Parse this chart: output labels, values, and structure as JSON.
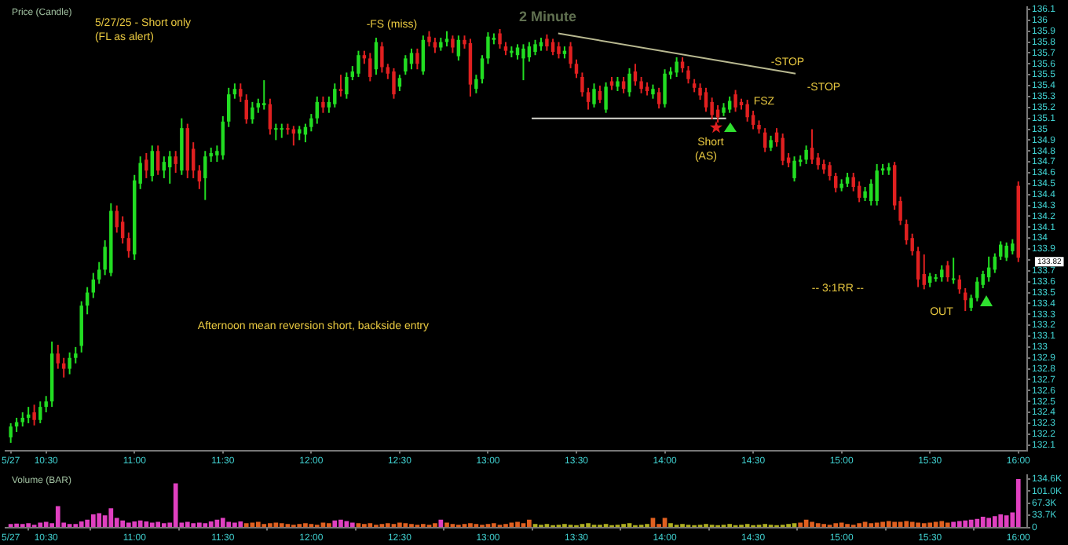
{
  "chart_data": [
    {
      "type": "candlestick",
      "title": "2 Minute",
      "x": [
        10.3,
        10.333,
        10.367,
        10.4,
        10.433,
        10.467,
        10.5,
        10.533,
        10.567,
        10.6,
        10.633,
        10.667,
        10.7,
        10.733,
        10.767,
        10.8,
        10.833,
        10.867,
        10.9,
        10.933,
        10.967,
        11,
        11.033,
        11.067,
        11.1,
        11.133,
        11.167,
        11.2,
        11.233,
        11.267,
        11.3,
        11.333,
        11.367,
        11.4,
        11.433,
        11.467,
        11.5,
        11.533,
        11.567,
        11.6,
        11.633,
        11.667,
        11.7,
        11.733,
        11.767,
        11.8,
        11.833,
        11.867,
        11.9,
        11.933,
        11.967,
        12,
        12.033,
        12.067,
        12.1,
        12.133,
        12.167,
        12.2,
        12.233,
        12.267,
        12.3,
        12.333,
        12.367,
        12.4,
        12.433,
        12.467,
        12.5,
        12.533,
        12.567,
        12.6,
        12.633,
        12.667,
        12.7,
        12.733,
        12.767,
        12.8,
        12.833,
        12.867,
        12.9,
        12.933,
        12.967,
        13,
        13.033,
        13.067,
        13.1,
        13.133,
        13.167,
        13.2,
        13.233,
        13.267,
        13.3,
        13.333,
        13.367,
        13.4,
        13.433,
        13.467,
        13.5,
        13.533,
        13.567,
        13.6,
        13.633,
        13.667,
        13.7,
        13.733,
        13.767,
        13.8,
        13.833,
        13.867,
        13.9,
        13.933,
        13.967,
        14,
        14.033,
        14.067,
        14.1,
        14.133,
        14.167,
        14.2,
        14.233,
        14.267,
        14.3,
        14.333,
        14.367,
        14.4,
        14.433,
        14.467,
        14.5,
        14.533,
        14.567,
        14.6,
        14.633,
        14.667,
        14.7,
        14.733,
        14.767,
        14.8,
        14.833,
        14.867,
        14.9,
        14.933,
        14.967,
        15,
        15.033,
        15.067,
        15.1,
        15.133,
        15.167,
        15.2,
        15.233,
        15.267,
        15.3,
        15.333,
        15.367,
        15.4,
        15.433,
        15.467,
        15.5,
        15.533,
        15.567,
        15.6,
        15.633,
        15.667,
        15.7,
        15.733,
        15.767,
        15.8,
        15.833,
        15.867,
        15.9,
        15.933,
        15.967,
        16
      ],
      "ohlc": [
        [
          132.17,
          132.3,
          132.12,
          132.27
        ],
        [
          132.27,
          132.35,
          132.22,
          132.31
        ],
        [
          132.31,
          132.4,
          132.27,
          132.35
        ],
        [
          132.35,
          132.45,
          132.3,
          132.38
        ],
        [
          132.4,
          132.47,
          132.28,
          132.33
        ],
        [
          132.33,
          132.5,
          132.3,
          132.45
        ],
        [
          132.45,
          132.55,
          132.4,
          132.5
        ],
        [
          132.5,
          133.05,
          132.45,
          132.94
        ],
        [
          132.94,
          133.02,
          132.8,
          132.85
        ],
        [
          132.85,
          132.9,
          132.72,
          132.8
        ],
        [
          132.8,
          132.95,
          132.75,
          132.9
        ],
        [
          132.9,
          133.0,
          132.85,
          132.94
        ],
        [
          133.01,
          133.42,
          132.95,
          133.38
        ],
        [
          133.38,
          133.55,
          133.3,
          133.5
        ],
        [
          133.5,
          133.68,
          133.45,
          133.62
        ],
        [
          133.62,
          133.78,
          133.58,
          133.71
        ],
        [
          133.71,
          133.98,
          133.66,
          133.92
        ],
        [
          133.68,
          134.32,
          133.65,
          134.25
        ],
        [
          134.25,
          134.3,
          134.05,
          134.1
        ],
        [
          134.15,
          134.2,
          133.95,
          134.0
        ],
        [
          134.0,
          134.05,
          133.82,
          133.88
        ],
        [
          133.85,
          134.58,
          133.8,
          134.53
        ],
        [
          134.5,
          134.75,
          134.45,
          134.69
        ],
        [
          134.72,
          134.78,
          134.55,
          134.62
        ],
        [
          134.57,
          134.85,
          134.52,
          134.8
        ],
        [
          134.8,
          134.85,
          134.58,
          134.62
        ],
        [
          134.62,
          134.75,
          134.55,
          134.7
        ],
        [
          134.65,
          134.8,
          134.5,
          134.75
        ],
        [
          134.75,
          134.8,
          134.6,
          134.68
        ],
        [
          134.62,
          135.1,
          134.58,
          135.01
        ],
        [
          135.01,
          135.05,
          134.55,
          134.62
        ],
        [
          134.82,
          134.88,
          134.55,
          134.62
        ],
        [
          134.62,
          134.67,
          134.45,
          134.52
        ],
        [
          134.55,
          134.8,
          134.35,
          134.75
        ],
        [
          134.75,
          134.83,
          134.7,
          134.78
        ],
        [
          134.76,
          134.85,
          134.7,
          134.8
        ],
        [
          134.76,
          135.12,
          134.72,
          135.07
        ],
        [
          135.07,
          135.38,
          135.02,
          135.32
        ],
        [
          135.32,
          135.42,
          135.28,
          135.37
        ],
        [
          135.37,
          135.42,
          135.25,
          135.3
        ],
        [
          135.27,
          135.32,
          135.05,
          135.09
        ],
        [
          135.09,
          135.25,
          135.05,
          135.2
        ],
        [
          135.2,
          135.28,
          135.15,
          135.24
        ],
        [
          135.22,
          135.45,
          135.18,
          135.24
        ],
        [
          135.23,
          135.28,
          134.95,
          135.0
        ],
        [
          135.0,
          135.05,
          134.9,
          135.01
        ],
        [
          135.0,
          135.05,
          134.92,
          135.01
        ],
        [
          135.01,
          135.05,
          134.95,
          135.0
        ],
        [
          135.0,
          135.03,
          134.85,
          134.96
        ],
        [
          134.96,
          135.03,
          134.9,
          135.0
        ],
        [
          134.95,
          135.05,
          134.88,
          135.02
        ],
        [
          135.02,
          135.14,
          134.98,
          135.1
        ],
        [
          135.1,
          135.3,
          135.05,
          135.25
        ],
        [
          135.25,
          135.3,
          135.15,
          135.2
        ],
        [
          135.2,
          135.3,
          135.15,
          135.25
        ],
        [
          135.23,
          135.42,
          135.2,
          135.37
        ],
        [
          135.37,
          135.5,
          135.3,
          135.35
        ],
        [
          135.32,
          135.52,
          135.28,
          135.48
        ],
        [
          135.48,
          135.58,
          135.45,
          135.53
        ],
        [
          135.51,
          135.72,
          135.48,
          135.68
        ],
        [
          135.68,
          135.72,
          135.6,
          135.65
        ],
        [
          135.65,
          135.7,
          135.44,
          135.48
        ],
        [
          135.55,
          135.84,
          135.5,
          135.8
        ],
        [
          135.76,
          135.8,
          135.52,
          135.57
        ],
        [
          135.57,
          135.6,
          135.46,
          135.51
        ],
        [
          135.53,
          135.56,
          135.28,
          135.32
        ],
        [
          135.39,
          135.5,
          135.35,
          135.47
        ],
        [
          135.53,
          135.68,
          135.5,
          135.65
        ],
        [
          135.6,
          135.74,
          135.55,
          135.7
        ],
        [
          135.7,
          135.74,
          135.55,
          135.6
        ],
        [
          135.53,
          135.86,
          135.5,
          135.82
        ],
        [
          135.85,
          135.9,
          135.76,
          135.8
        ],
        [
          135.8,
          135.84,
          135.7,
          135.75
        ],
        [
          135.75,
          135.84,
          135.72,
          135.8
        ],
        [
          135.8,
          135.9,
          135.76,
          135.83
        ],
        [
          135.83,
          135.86,
          135.7,
          135.75
        ],
        [
          135.67,
          135.86,
          135.63,
          135.82
        ],
        [
          135.82,
          135.86,
          135.74,
          135.78
        ],
        [
          135.79,
          135.83,
          135.3,
          135.41
        ],
        [
          135.37,
          135.5,
          135.33,
          135.46
        ],
        [
          135.46,
          135.68,
          135.42,
          135.65
        ],
        [
          135.65,
          135.89,
          135.6,
          135.85
        ],
        [
          135.82,
          135.88,
          135.78,
          135.84
        ],
        [
          135.88,
          135.92,
          135.74,
          135.78
        ],
        [
          135.76,
          135.8,
          135.68,
          135.72
        ],
        [
          135.7,
          135.76,
          135.66,
          135.72
        ],
        [
          135.68,
          135.78,
          135.64,
          135.75
        ],
        [
          135.65,
          135.78,
          135.45,
          135.74
        ],
        [
          135.66,
          135.8,
          135.62,
          135.76
        ],
        [
          135.71,
          135.82,
          135.68,
          135.78
        ],
        [
          135.76,
          135.84,
          135.72,
          135.8
        ],
        [
          135.83,
          135.87,
          135.72,
          135.76
        ],
        [
          135.8,
          135.83,
          135.68,
          135.71
        ],
        [
          135.76,
          135.8,
          135.65,
          135.69
        ],
        [
          135.69,
          135.76,
          135.65,
          135.72
        ],
        [
          135.76,
          135.8,
          135.56,
          135.6
        ],
        [
          135.6,
          135.64,
          135.47,
          135.51
        ],
        [
          135.48,
          135.52,
          135.3,
          135.34
        ],
        [
          135.34,
          135.38,
          135.18,
          135.25
        ],
        [
          135.23,
          135.42,
          135.2,
          135.37
        ],
        [
          135.35,
          135.4,
          135.24,
          135.27
        ],
        [
          135.18,
          135.43,
          135.15,
          135.39
        ],
        [
          135.44,
          135.48,
          135.36,
          135.4
        ],
        [
          135.39,
          135.48,
          135.35,
          135.44
        ],
        [
          135.44,
          135.48,
          135.33,
          135.37
        ],
        [
          135.34,
          135.56,
          135.3,
          135.51
        ],
        [
          135.53,
          135.6,
          135.4,
          135.44
        ],
        [
          135.44,
          135.48,
          135.33,
          135.37
        ],
        [
          135.39,
          135.43,
          135.31,
          135.35
        ],
        [
          135.32,
          135.41,
          135.28,
          135.37
        ],
        [
          135.34,
          135.38,
          135.19,
          135.23
        ],
        [
          135.23,
          135.55,
          135.2,
          135.51
        ],
        [
          135.5,
          135.57,
          135.46,
          135.53
        ],
        [
          135.52,
          135.66,
          135.48,
          135.62
        ],
        [
          135.62,
          135.66,
          135.52,
          135.56
        ],
        [
          135.54,
          135.58,
          135.42,
          135.46
        ],
        [
          135.42,
          135.46,
          135.34,
          135.38
        ],
        [
          135.38,
          135.42,
          135.27,
          135.31
        ],
        [
          135.34,
          135.38,
          135.16,
          135.2
        ],
        [
          135.25,
          135.29,
          135.09,
          135.13
        ],
        [
          135.18,
          135.22,
          135.06,
          135.11
        ],
        [
          135.15,
          135.24,
          135.12,
          135.2
        ],
        [
          135.18,
          135.3,
          135.15,
          135.26
        ],
        [
          135.32,
          135.36,
          135.16,
          135.2
        ],
        [
          135.25,
          135.28,
          135.18,
          135.22
        ],
        [
          135.23,
          135.27,
          135.07,
          135.11
        ],
        [
          135.13,
          135.17,
          135.0,
          135.04
        ],
        [
          135.04,
          135.08,
          134.96,
          135.0
        ],
        [
          134.97,
          135.01,
          134.79,
          134.83
        ],
        [
          134.83,
          134.94,
          134.8,
          134.9
        ],
        [
          134.97,
          135.01,
          134.84,
          134.88
        ],
        [
          134.92,
          134.96,
          134.67,
          134.71
        ],
        [
          134.74,
          134.78,
          134.65,
          134.69
        ],
        [
          134.55,
          134.75,
          134.52,
          134.71
        ],
        [
          134.7,
          134.76,
          134.66,
          134.72
        ],
        [
          134.72,
          134.85,
          134.68,
          134.81
        ],
        [
          134.83,
          135.0,
          134.68,
          134.72
        ],
        [
          134.74,
          134.78,
          134.63,
          134.67
        ],
        [
          134.68,
          134.72,
          134.59,
          134.63
        ],
        [
          134.67,
          134.7,
          134.53,
          134.57
        ],
        [
          134.57,
          134.6,
          134.42,
          134.46
        ],
        [
          134.46,
          134.54,
          134.43,
          134.5
        ],
        [
          134.5,
          134.6,
          134.47,
          134.56
        ],
        [
          134.56,
          134.6,
          134.43,
          134.47
        ],
        [
          134.48,
          134.52,
          134.33,
          134.37
        ],
        [
          134.37,
          134.47,
          134.34,
          134.43
        ],
        [
          134.34,
          134.54,
          134.3,
          134.5
        ],
        [
          134.34,
          134.68,
          134.3,
          134.62
        ],
        [
          134.62,
          134.68,
          134.58,
          134.64
        ],
        [
          134.62,
          134.69,
          134.58,
          134.65
        ],
        [
          134.67,
          134.7,
          134.26,
          134.3
        ],
        [
          134.34,
          134.38,
          134.12,
          134.16
        ],
        [
          134.13,
          134.17,
          133.94,
          133.98
        ],
        [
          134.0,
          134.04,
          133.84,
          133.88
        ],
        [
          133.88,
          133.92,
          133.55,
          133.62
        ],
        [
          133.67,
          133.85,
          133.53,
          133.57
        ],
        [
          133.59,
          133.68,
          133.55,
          133.65
        ],
        [
          133.63,
          133.67,
          133.6,
          133.64
        ],
        [
          133.64,
          133.75,
          133.6,
          133.71
        ],
        [
          133.75,
          133.79,
          133.6,
          133.64
        ],
        [
          133.62,
          133.82,
          133.58,
          133.63
        ],
        [
          133.62,
          133.66,
          133.49,
          133.53
        ],
        [
          133.5,
          133.54,
          133.33,
          133.43
        ],
        [
          133.36,
          133.48,
          133.33,
          133.45
        ],
        [
          133.45,
          133.64,
          133.42,
          133.6
        ],
        [
          133.57,
          133.7,
          133.54,
          133.67
        ],
        [
          133.64,
          133.83,
          133.6,
          133.73
        ],
        [
          133.71,
          133.86,
          133.68,
          133.83
        ],
        [
          133.83,
          133.97,
          133.8,
          133.94
        ],
        [
          133.82,
          133.96,
          133.79,
          133.93
        ],
        [
          133.88,
          133.99,
          133.85,
          133.95
        ],
        [
          134.48,
          134.52,
          133.78,
          133.82
        ]
      ],
      "series": [
        {
          "type": "line",
          "x": [
            13.397,
            14.74
          ],
          "values": [
            135.88,
            135.51
          ],
          "color": "#b8b890"
        },
        {
          "type": "line",
          "x": [
            13.247,
            14.347
          ],
          "values": [
            135.1,
            135.1
          ],
          "color": "#d8d8d0"
        }
      ],
      "xlim": [
        10.27,
        16.05
      ],
      "xticks": [
        {
          "value": 10.3,
          "label": "5/27"
        },
        {
          "value": 10.5,
          "label": "10:30"
        },
        {
          "value": 11,
          "label": "11:00"
        },
        {
          "value": 11.5,
          "label": "11:30"
        },
        {
          "value": 12,
          "label": "12:00"
        },
        {
          "value": 12.5,
          "label": "12:30"
        },
        {
          "value": 13,
          "label": "13:00"
        },
        {
          "value": 13.5,
          "label": "13:30"
        },
        {
          "value": 14,
          "label": "14:00"
        },
        {
          "value": 14.5,
          "label": "14:30"
        },
        {
          "value": 15,
          "label": "15:00"
        },
        {
          "value": 15.5,
          "label": "15:30"
        },
        {
          "value": 16,
          "label": "16:00"
        }
      ],
      "ylim": [
        132.05,
        136.12
      ],
      "yticks": [
        132.1,
        132.2,
        132.3,
        132.4,
        132.5,
        132.6,
        132.7,
        132.8,
        132.9,
        133,
        133.1,
        133.2,
        133.3,
        133.4,
        133.5,
        133.6,
        133.7,
        {
          "value": 133.8,
          "label": null
        },
        133.9,
        134,
        134.1,
        134.2,
        134.3,
        134.4,
        134.5,
        134.6,
        134.7,
        134.8,
        134.9,
        135,
        135.1,
        135.2,
        135.3,
        135.4,
        135.5,
        135.6,
        135.7,
        135.8,
        135.9,
        136,
        136.1
      ],
      "annotations": [
        "Price (Candle)",
        "5/27/25 - Short only",
        "(FL as alert)",
        "-FS (miss)",
        "-STOP",
        "-STOP",
        "FSZ",
        "Short",
        "(AS)",
        "Afternoon mean reversion short, backside entry",
        "-- 3:1RR --",
        "OUT",
        "133.82"
      ]
    },
    {
      "type": "bar",
      "x": [
        10.3,
        10.333,
        10.367,
        10.4,
        10.433,
        10.467,
        10.5,
        10.533,
        10.567,
        10.6,
        10.633,
        10.667,
        10.7,
        10.733,
        10.767,
        10.8,
        10.833,
        10.867,
        10.9,
        10.933,
        10.967,
        11,
        11.033,
        11.067,
        11.1,
        11.133,
        11.167,
        11.2,
        11.233,
        11.267,
        11.3,
        11.333,
        11.367,
        11.4,
        11.433,
        11.467,
        11.5,
        11.533,
        11.567,
        11.6,
        11.633,
        11.667,
        11.7,
        11.733,
        11.767,
        11.8,
        11.833,
        11.867,
        11.9,
        11.933,
        11.967,
        12,
        12.033,
        12.067,
        12.1,
        12.133,
        12.167,
        12.2,
        12.233,
        12.267,
        12.3,
        12.333,
        12.367,
        12.4,
        12.433,
        12.467,
        12.5,
        12.533,
        12.567,
        12.6,
        12.633,
        12.667,
        12.7,
        12.733,
        12.767,
        12.8,
        12.833,
        12.867,
        12.9,
        12.933,
        12.967,
        13,
        13.033,
        13.067,
        13.1,
        13.133,
        13.167,
        13.2,
        13.233,
        13.267,
        13.3,
        13.333,
        13.367,
        13.4,
        13.433,
        13.467,
        13.5,
        13.533,
        13.567,
        13.6,
        13.633,
        13.667,
        13.7,
        13.733,
        13.767,
        13.8,
        13.833,
        13.867,
        13.9,
        13.933,
        13.967,
        14,
        14.033,
        14.067,
        14.1,
        14.133,
        14.167,
        14.2,
        14.233,
        14.267,
        14.3,
        14.333,
        14.367,
        14.4,
        14.433,
        14.467,
        14.5,
        14.533,
        14.567,
        14.6,
        14.633,
        14.667,
        14.7,
        14.733,
        14.767,
        14.8,
        14.833,
        14.867,
        14.9,
        14.933,
        14.967,
        15,
        15.033,
        15.067,
        15.1,
        15.133,
        15.167,
        15.2,
        15.233,
        15.267,
        15.3,
        15.333,
        15.367,
        15.4,
        15.433,
        15.467,
        15.5,
        15.533,
        15.567,
        15.6,
        15.633,
        15.667,
        15.7,
        15.733,
        15.767,
        15.8,
        15.833,
        15.867,
        15.9,
        15.933,
        15.967,
        16
      ],
      "values": [
        8,
        9,
        8,
        10,
        6,
        12,
        14,
        10,
        58,
        12,
        8,
        8,
        15,
        20,
        35,
        38,
        32,
        52,
        25,
        18,
        12,
        15,
        18,
        15,
        12,
        14,
        10,
        12,
        121,
        12,
        14,
        10,
        12,
        10,
        15,
        20,
        25,
        14,
        12,
        15,
        10,
        12,
        14,
        8,
        10,
        12,
        10,
        8,
        6,
        8,
        10,
        8,
        6,
        12,
        10,
        18,
        20,
        16,
        12,
        10,
        8,
        10,
        6,
        8,
        10,
        8,
        12,
        10,
        8,
        6,
        8,
        6,
        10,
        20,
        12,
        8,
        6,
        8,
        10,
        8,
        6,
        8,
        10,
        6,
        8,
        12,
        14,
        10,
        20,
        8,
        6,
        8,
        5,
        6,
        8,
        6,
        5,
        8,
        10,
        6,
        6,
        8,
        5,
        6,
        8,
        10,
        5,
        6,
        8,
        25,
        8,
        25,
        10,
        6,
        8,
        6,
        5,
        6,
        8,
        6,
        5,
        6,
        8,
        5,
        6,
        8,
        5,
        6,
        8,
        6,
        5,
        6,
        8,
        10,
        12,
        20,
        14,
        10,
        8,
        6,
        10,
        12,
        8,
        6,
        10,
        14,
        10,
        12,
        14,
        16,
        14,
        14,
        16,
        14,
        12,
        10,
        12,
        14,
        16,
        12,
        14,
        16,
        18,
        20,
        22,
        28,
        25,
        30,
        35,
        32,
        40,
        133
      ],
      "colors": [
        "#e040c0",
        "#e040c0",
        "#e040c0",
        "#e040c0",
        "#e040c0",
        "#e040c0",
        "#e040c0",
        "#e040c0",
        "#e040c0",
        "#e040c0",
        "#e040c0",
        "#e040c0",
        "#e040c0",
        "#e040c0",
        "#e040c0",
        "#e040c0",
        "#e040c0",
        "#e040c0",
        "#e040c0",
        "#e040c0",
        "#e040c0",
        "#e040c0",
        "#e040c0",
        "#e040c0",
        "#e040c0",
        "#e040c0",
        "#e040c0",
        "#e040c0",
        "#e040c0",
        "#e040c0",
        "#e040c0",
        "#e040c0",
        "#e040c0",
        "#e040c0",
        "#e040c0",
        "#e040c0",
        "#e040c0",
        "#e040c0",
        "#e040c0",
        "#e040c0",
        "#e06020",
        "#e06020",
        "#e06020",
        "#e06020",
        "#e06020",
        "#e06020",
        "#e06020",
        "#e06020",
        "#e06020",
        "#e06020",
        "#e06020",
        "#e06020",
        "#e06020",
        "#e06020",
        "#e06020",
        "#e040c0",
        "#e040c0",
        "#e040c0",
        "#e040c0",
        "#e06020",
        "#e06020",
        "#e06020",
        "#e06020",
        "#e06020",
        "#e06020",
        "#e06020",
        "#e06020",
        "#e06020",
        "#e06020",
        "#e06020",
        "#e06020",
        "#e06020",
        "#e06020",
        "#e040c0",
        "#e06020",
        "#e06020",
        "#e06020",
        "#e06020",
        "#e06020",
        "#e06020",
        "#e06020",
        "#e06020",
        "#e06020",
        "#e06020",
        "#e06020",
        "#e06020",
        "#e06020",
        "#e06020",
        "#e06020",
        "#b0b020",
        "#b0b020",
        "#b0b020",
        "#b0b020",
        "#b0b020",
        "#b0b020",
        "#b0b020",
        "#b0b020",
        "#b0b020",
        "#b0b020",
        "#b0b020",
        "#b0b020",
        "#b0b020",
        "#b0b020",
        "#b0b020",
        "#b0b020",
        "#b0b020",
        "#b0b020",
        "#b0b020",
        "#b0b020",
        "#e06020",
        "#e06020",
        "#e06020",
        "#b0b020",
        "#b0b020",
        "#b0b020",
        "#b0b020",
        "#b0b020",
        "#b0b020",
        "#b0b020",
        "#b0b020",
        "#b0b020",
        "#b0b020",
        "#b0b020",
        "#b0b020",
        "#b0b020",
        "#b0b020",
        "#b0b020",
        "#b0b020",
        "#b0b020",
        "#b0b020",
        "#b0b020",
        "#b0b020",
        "#b0b020",
        "#b0b020",
        "#e06020",
        "#e06020",
        "#e06020",
        "#e06020",
        "#e06020",
        "#e06020",
        "#e06020",
        "#e06020",
        "#e06020",
        "#e06020",
        "#e06020",
        "#e06020",
        "#e06020",
        "#e06020",
        "#e06020",
        "#e06020",
        "#e06020",
        "#e06020",
        "#e06020",
        "#e06020",
        "#e06020",
        "#e06020",
        "#e06020",
        "#e06020",
        "#e06020",
        "#e06020",
        "#e040c0",
        "#e040c0",
        "#e040c0",
        "#e040c0",
        "#e040c0",
        "#e040c0",
        "#e040c0",
        "#e040c0",
        "#e040c0",
        "#e040c0",
        "#e040c0",
        "#e040c0"
      ],
      "xlim": [
        10.27,
        16.05
      ],
      "xticks": [
        {
          "value": 10.3,
          "label": "5/27"
        },
        {
          "value": 10.5,
          "label": "10:30"
        },
        {
          "value": 11,
          "label": "11:00"
        },
        {
          "value": 11.5,
          "label": "11:30"
        },
        {
          "value": 12,
          "label": "12:00"
        },
        {
          "value": 12.5,
          "label": "12:30"
        },
        {
          "value": 13,
          "label": "13:00"
        },
        {
          "value": 13.5,
          "label": "13:30"
        },
        {
          "value": 14,
          "label": "14:00"
        },
        {
          "value": 14.5,
          "label": "14:30"
        },
        {
          "value": 15,
          "label": "15:00"
        },
        {
          "value": 15.5,
          "label": "15:30"
        },
        {
          "value": 16,
          "label": "16:00"
        }
      ],
      "ylim": [
        0,
        145
      ],
      "yticks": [
        0,
        {
          "value": 33.7,
          "label": "33.7K"
        },
        {
          "value": 67.3,
          "label": "67.3K"
        },
        {
          "value": 101,
          "label": "101.0K"
        },
        {
          "value": 134.6,
          "label": "134.6K"
        }
      ],
      "annotations": [
        "Volume (BAR)"
      ]
    }
  ]
}
